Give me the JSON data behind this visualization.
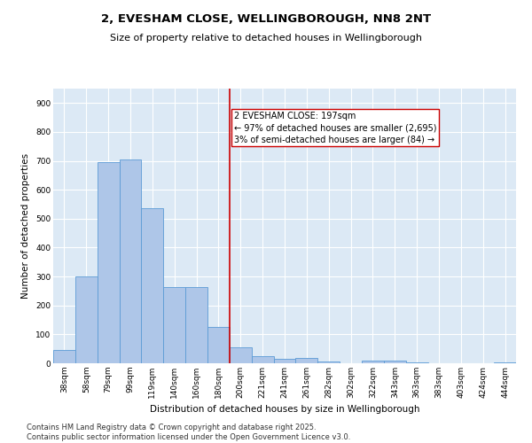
{
  "title_line1": "2, EVESHAM CLOSE, WELLINGBOROUGH, NN8 2NT",
  "title_line2": "Size of property relative to detached houses in Wellingborough",
  "xlabel": "Distribution of detached houses by size in Wellingborough",
  "ylabel": "Number of detached properties",
  "categories": [
    "38sqm",
    "58sqm",
    "79sqm",
    "99sqm",
    "119sqm",
    "140sqm",
    "160sqm",
    "180sqm",
    "200sqm",
    "221sqm",
    "241sqm",
    "261sqm",
    "282sqm",
    "302sqm",
    "322sqm",
    "343sqm",
    "363sqm",
    "383sqm",
    "403sqm",
    "424sqm",
    "444sqm"
  ],
  "values": [
    45,
    300,
    695,
    705,
    535,
    263,
    263,
    125,
    55,
    25,
    15,
    18,
    5,
    0,
    10,
    10,
    3,
    0,
    0,
    0,
    3
  ],
  "bar_color": "#aec6e8",
  "bar_edge_color": "#5b9bd5",
  "background_color": "#dce9f5",
  "grid_color": "#ffffff",
  "vline_x": 7.5,
  "vline_color": "#cc0000",
  "annotation_text": "2 EVESHAM CLOSE: 197sqm\n← 97% of detached houses are smaller (2,695)\n3% of semi-detached houses are larger (84) →",
  "annotation_box_color": "#cc0000",
  "footer": "Contains HM Land Registry data © Crown copyright and database right 2025.\nContains public sector information licensed under the Open Government Licence v3.0.",
  "ylim": [
    0,
    950
  ],
  "yticks": [
    0,
    100,
    200,
    300,
    400,
    500,
    600,
    700,
    800,
    900
  ],
  "title_fontsize": 9.5,
  "subtitle_fontsize": 8.0,
  "axis_fontsize": 7.5,
  "tick_fontsize": 6.5,
  "annotation_fontsize": 7.0,
  "footer_fontsize": 6.0
}
